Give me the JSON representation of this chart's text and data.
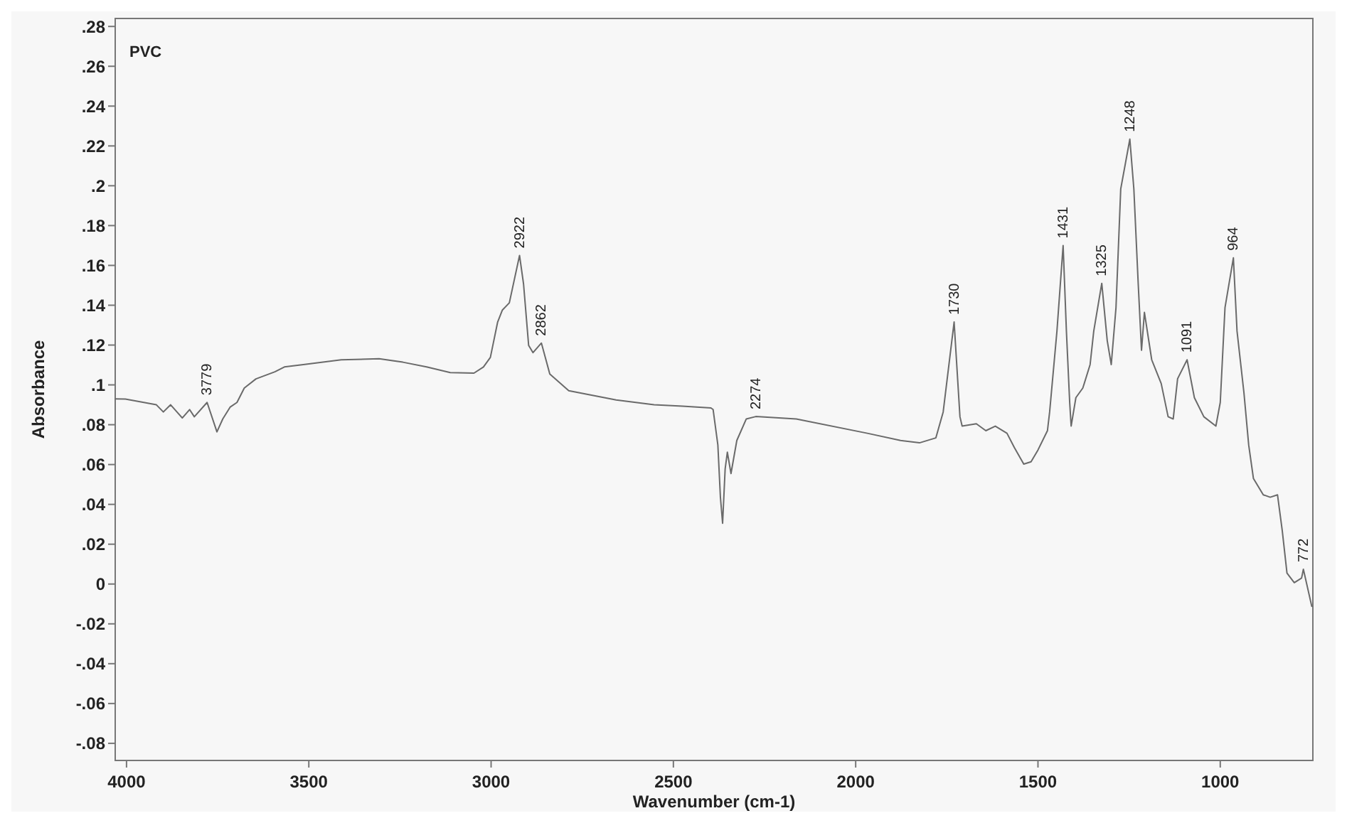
{
  "chart_data": {
    "type": "line",
    "title": "PVC",
    "xlabel": "Wavenumber (cm-1)",
    "ylabel": "Absorbance",
    "xlim": [
      4031,
      746
    ],
    "ylim": [
      -0.0886,
      0.284
    ],
    "xticks": [
      4000,
      3500,
      3000,
      2500,
      2000,
      1500,
      1000
    ],
    "yticks": [
      {
        "value": 0.28,
        "label": ".28"
      },
      {
        "value": 0.26,
        "label": ".26"
      },
      {
        "value": 0.24,
        "label": ".24"
      },
      {
        "value": 0.22,
        "label": ".22"
      },
      {
        "value": 0.2,
        "label": ".2"
      },
      {
        "value": 0.18,
        "label": ".18"
      },
      {
        "value": 0.16,
        "label": ".16"
      },
      {
        "value": 0.14,
        "label": ".14"
      },
      {
        "value": 0.12,
        "label": ".12"
      },
      {
        "value": 0.1,
        "label": ".1"
      },
      {
        "value": 0.08,
        "label": ".08"
      },
      {
        "value": 0.06,
        "label": ".06"
      },
      {
        "value": 0.04,
        "label": ".04"
      },
      {
        "value": 0.02,
        "label": ".02"
      },
      0,
      {
        "value": -0.02,
        "label": "-.02"
      },
      {
        "value": -0.04,
        "label": "-.04"
      },
      {
        "value": -0.06,
        "label": "-.06"
      },
      {
        "value": -0.08,
        "label": "-.08"
      }
    ],
    "grid": false,
    "marker": "none",
    "line_style": "solid",
    "series": [
      {
        "color": "#6a6a6a",
        "x": [
          4030,
          4003,
          3918,
          3899,
          3879,
          3847,
          3827,
          3814,
          3779,
          3752,
          3736,
          3716,
          3697,
          3677,
          3645,
          3593,
          3567,
          3515,
          3411,
          3307,
          3242,
          3177,
          3112,
          3047,
          3021,
          3002,
          2982,
          2969,
          2950,
          2922,
          2911,
          2897,
          2885,
          2862,
          2839,
          2787,
          2657,
          2553,
          2475,
          2397,
          2391,
          2378,
          2371,
          2365,
          2358,
          2352,
          2342,
          2326,
          2300,
          2274,
          2163,
          1968,
          1877,
          1825,
          1780,
          1760,
          1730,
          1714,
          1708,
          1669,
          1643,
          1617,
          1585,
          1565,
          1539,
          1519,
          1500,
          1474,
          1468,
          1448,
          1431,
          1422,
          1413,
          1409,
          1396,
          1377,
          1357,
          1347,
          1325,
          1310,
          1299,
          1286,
          1273,
          1248,
          1237,
          1225,
          1216,
          1208,
          1188,
          1162,
          1143,
          1129,
          1117,
          1091,
          1071,
          1045,
          1012,
          1000,
          987,
          964,
          954,
          935,
          922,
          909,
          882,
          863,
          843,
          830,
          817,
          797,
          777,
          772,
          749
        ],
        "values": [
          0.093,
          0.0929,
          0.09,
          0.0864,
          0.09,
          0.0834,
          0.0876,
          0.084,
          0.0912,
          0.0764,
          0.0829,
          0.0888,
          0.0912,
          0.0984,
          0.103,
          0.1066,
          0.109,
          0.1102,
          0.1126,
          0.1131,
          0.1114,
          0.109,
          0.1062,
          0.1059,
          0.109,
          0.1138,
          0.1316,
          0.1376,
          0.1412,
          0.165,
          0.1507,
          0.1198,
          0.1162,
          0.121,
          0.1055,
          0.0971,
          0.0924,
          0.09,
          0.0893,
          0.0884,
          0.0876,
          0.0698,
          0.0436,
          0.0305,
          0.0579,
          0.0662,
          0.0555,
          0.0721,
          0.0829,
          0.0841,
          0.0829,
          0.0757,
          0.0721,
          0.0709,
          0.0734,
          0.0864,
          0.1316,
          0.084,
          0.0793,
          0.0805,
          0.077,
          0.0793,
          0.0757,
          0.0686,
          0.0602,
          0.0614,
          0.0673,
          0.077,
          0.0864,
          0.1269,
          0.17,
          0.127,
          0.0912,
          0.0793,
          0.0936,
          0.0984,
          0.1102,
          0.127,
          0.151,
          0.1222,
          0.1102,
          0.1388,
          0.1984,
          0.2234,
          0.1984,
          0.1507,
          0.1174,
          0.1364,
          0.1126,
          0.1007,
          0.084,
          0.0829,
          0.1031,
          0.1126,
          0.0936,
          0.084,
          0.0793,
          0.0912,
          0.1388,
          0.1638,
          0.127,
          0.096,
          0.0698,
          0.053,
          0.0448,
          0.0436,
          0.0448,
          0.0269,
          0.0055,
          0.0007,
          0.003,
          0.0074,
          -0.0112
        ]
      }
    ],
    "annotations": [
      {
        "text": "3779",
        "x": 3779,
        "y": 0.0912
      },
      {
        "text": "2922",
        "x": 2922,
        "y": 0.165
      },
      {
        "text": "2862",
        "x": 2862,
        "y": 0.121
      },
      {
        "text": "2274",
        "x": 2274,
        "y": 0.0841
      },
      {
        "text": "1730",
        "x": 1730,
        "y": 0.1316
      },
      {
        "text": "1431",
        "x": 1431,
        "y": 0.17
      },
      {
        "text": "1325",
        "x": 1325,
        "y": 0.151
      },
      {
        "text": "1248",
        "x": 1248,
        "y": 0.2234
      },
      {
        "text": "1091",
        "x": 1091,
        "y": 0.1126
      },
      {
        "text": "964",
        "x": 964,
        "y": 0.1638
      },
      {
        "text": "772",
        "x": 772,
        "y": 0.0074
      }
    ]
  }
}
